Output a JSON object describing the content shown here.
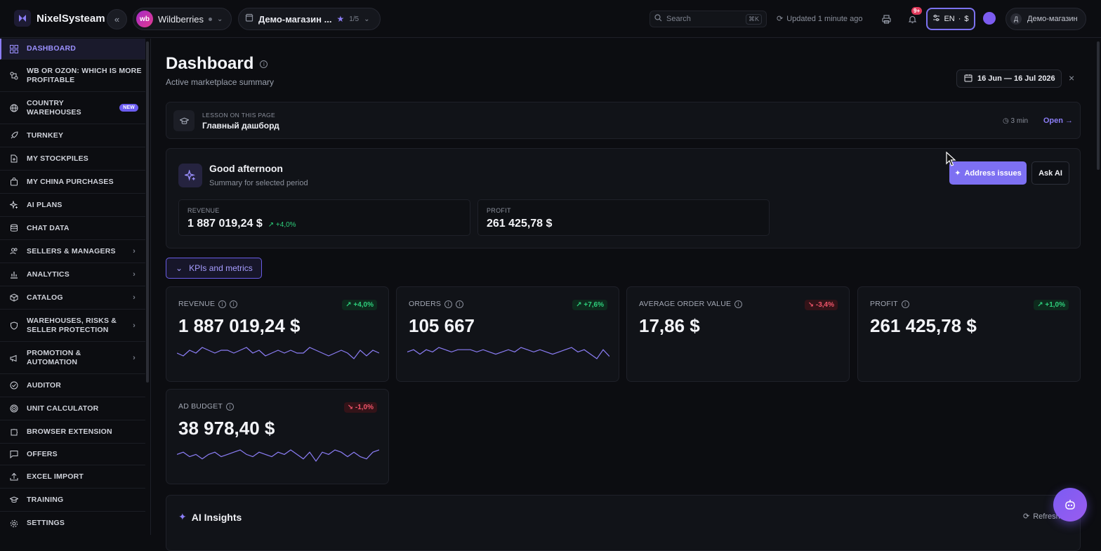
{
  "header": {
    "app_name": "NixelSysteam",
    "marketplace": {
      "avatar_text": "wb",
      "name": "Wildberries"
    },
    "store": {
      "name": "Демо-магазин ...",
      "count": "1/5"
    },
    "search": {
      "placeholder": "Search",
      "shortcut": "⌘K"
    },
    "updated_text": "Updated 1 minute ago",
    "notifications_badge": "9+",
    "locale": {
      "language": "EN",
      "currency": "$"
    },
    "user": {
      "initial": "Д",
      "name": "Демо-магазин"
    }
  },
  "sidebar": {
    "items": [
      {
        "label": "DASHBOARD",
        "icon": "grid-icon",
        "active": true
      },
      {
        "label": "WB OR OZON: WHICH IS MORE PROFITABLE",
        "icon": "compare-icon"
      },
      {
        "label": "COUNTRY WAREHOUSES",
        "icon": "globe-icon",
        "badge": "NEW"
      },
      {
        "label": "TURNKEY",
        "icon": "rocket-icon"
      },
      {
        "label": "MY STOCKPILES",
        "icon": "file-plus-icon"
      },
      {
        "label": "MY CHINA PURCHASES",
        "icon": "bag-icon"
      },
      {
        "label": "AI PLANS",
        "icon": "sparkles-icon"
      },
      {
        "label": "CHAT DATA",
        "icon": "database-icon"
      },
      {
        "label": "SELLERS & MANAGERS",
        "icon": "users-icon",
        "has_children": true
      },
      {
        "label": "ANALYTICS",
        "icon": "bar-chart-icon",
        "has_children": true
      },
      {
        "label": "CATALOG",
        "icon": "box-icon",
        "has_children": true
      },
      {
        "label": "WAREHOUSES, RISKS & SELLER PROTECTION",
        "icon": "shield-icon",
        "has_children": true
      },
      {
        "label": "PROMOTION & AUTOMATION",
        "icon": "megaphone-icon",
        "has_children": true
      },
      {
        "label": "AUDITOR",
        "icon": "check-circle-icon"
      },
      {
        "label": "UNIT CALCULATOR",
        "icon": "target-icon"
      },
      {
        "label": "BROWSER EXTENSION",
        "icon": "puzzle-icon"
      },
      {
        "label": "OFFERS",
        "icon": "message-icon"
      },
      {
        "label": "EXCEL IMPORT",
        "icon": "upload-icon"
      },
      {
        "label": "TRAINING",
        "icon": "graduation-cap-icon"
      },
      {
        "label": "SETTINGS",
        "icon": "gear-icon"
      }
    ]
  },
  "page": {
    "title": "Dashboard",
    "subtitle": "Active marketplace summary",
    "date_range": "16 Jun — 16 Jul 2026"
  },
  "lesson": {
    "kicker": "LESSON ON THIS PAGE",
    "title": "Главный дашборд",
    "duration": "3 min",
    "open_label": "Open →"
  },
  "greeting": {
    "title": "Good afternoon",
    "subtitle": "Summary for selected period",
    "address_button": "Address issues",
    "ask_button": "Ask AI",
    "revenue": {
      "label": "REVENUE",
      "value": "1 887 019,24 $",
      "delta": "↗ +4,0%"
    },
    "profit": {
      "label": "PROFIT",
      "value": "261 425,78 $"
    }
  },
  "kpis_toggle_label": "KPIs and metrics",
  "kpis": [
    {
      "label": "REVENUE",
      "value": "1 887 019,24 $",
      "delta": "↗ +4,0%",
      "trend": "up",
      "sparkline": [
        5,
        4,
        6,
        5,
        7,
        6,
        5,
        6,
        6,
        5,
        6,
        7,
        5,
        6,
        4,
        5,
        6,
        5,
        6,
        5,
        5,
        7,
        6,
        5,
        4,
        5,
        6,
        5,
        3,
        6,
        4,
        6,
        5
      ]
    },
    {
      "label": "ORDERS",
      "value": "105 667",
      "delta": "↗ +7,6%",
      "trend": "up",
      "sparkline": [
        5,
        6,
        4,
        6,
        5,
        7,
        6,
        5,
        6,
        6,
        6,
        5,
        6,
        5,
        4,
        5,
        6,
        5,
        7,
        6,
        5,
        6,
        5,
        4,
        5,
        6,
        7,
        5,
        6,
        4,
        2,
        6,
        3
      ]
    },
    {
      "label": "AVERAGE ORDER VALUE",
      "value": "17,86 $",
      "delta": "↘ -3,4%",
      "trend": "down"
    },
    {
      "label": "PROFIT",
      "value": "261 425,78 $",
      "delta": "↗ +1,0%",
      "trend": "up"
    },
    {
      "label": "AD BUDGET",
      "value": "38 978,40 $",
      "delta": "↘ -1,0%",
      "trend": "down",
      "sparkline": [
        5,
        6,
        4,
        5,
        3,
        5,
        6,
        4,
        5,
        6,
        7,
        5,
        4,
        6,
        5,
        4,
        6,
        5,
        7,
        5,
        3,
        6,
        2,
        6,
        5,
        7,
        6,
        4,
        6,
        4,
        3,
        6,
        7
      ]
    }
  ],
  "ai_insights": {
    "title": "AI Insights",
    "refresh_label": "Refresh"
  },
  "colors": {
    "accent": "#8b7df5",
    "positive": "#2ecf7b",
    "negative": "#f0556a",
    "background": "#0c0d11"
  }
}
